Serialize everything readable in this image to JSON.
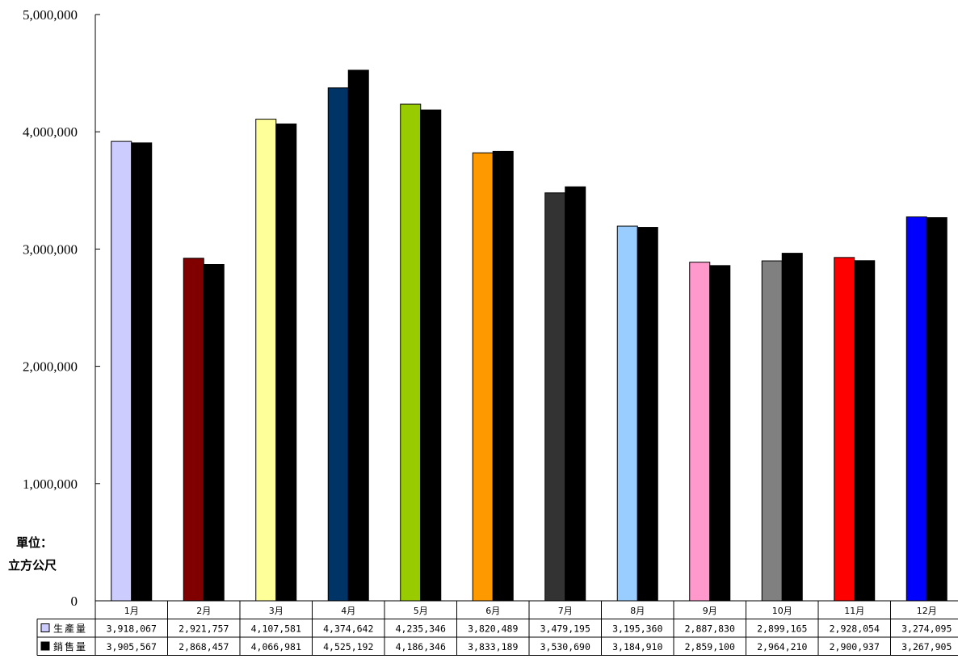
{
  "chart_data": {
    "type": "bar",
    "unit_label": [
      "單位：",
      "立方公尺"
    ],
    "ylim": [
      0,
      5000000
    ],
    "y_ticks": [
      0,
      1000000,
      2000000,
      3000000,
      4000000,
      5000000
    ],
    "y_tick_labels": [
      "0",
      "1,000,000",
      "2,000,000",
      "3,000,000",
      "4,000,000",
      "5,000,000"
    ],
    "categories": [
      "1月",
      "2月",
      "3月",
      "4月",
      "5月",
      "6月",
      "7月",
      "8月",
      "9月",
      "10月",
      "11月",
      "12月"
    ],
    "series": [
      {
        "name": "生產量",
        "values": [
          3918067,
          2921757,
          4107581,
          4374642,
          4235346,
          3820489,
          3479195,
          3195360,
          2887830,
          2899165,
          2928054,
          3274095
        ],
        "labels": [
          "3,918,067",
          "2,921,757",
          "4,107,581",
          "4,374,642",
          "4,235,346",
          "3,820,489",
          "3,479,195",
          "3,195,360",
          "2,887,830",
          "2,899,165",
          "2,928,054",
          "3,274,095"
        ],
        "colors": [
          "#ccccff",
          "#800000",
          "#ffff99",
          "#003366",
          "#99cc00",
          "#ff9900",
          "#333333",
          "#99ccff",
          "#ff99cc",
          "#808080",
          "#ff0000",
          "#0000ff"
        ],
        "legend_color": "#ccccff"
      },
      {
        "name": "銷售量",
        "values": [
          3905567,
          2868457,
          4066981,
          4525192,
          4186346,
          3833189,
          3530690,
          3184910,
          2859100,
          2964210,
          2900937,
          3267905
        ],
        "labels": [
          "3,905,567",
          "2,868,457",
          "4,066,981",
          "4,525,192",
          "4,186,346",
          "3,833,189",
          "3,530,690",
          "3,184,910",
          "2,859,100",
          "2,964,210",
          "2,900,937",
          "3,267,905"
        ],
        "color": "#000000",
        "legend_color": "#000000"
      }
    ],
    "grid": false,
    "legend": "data-table-left"
  }
}
